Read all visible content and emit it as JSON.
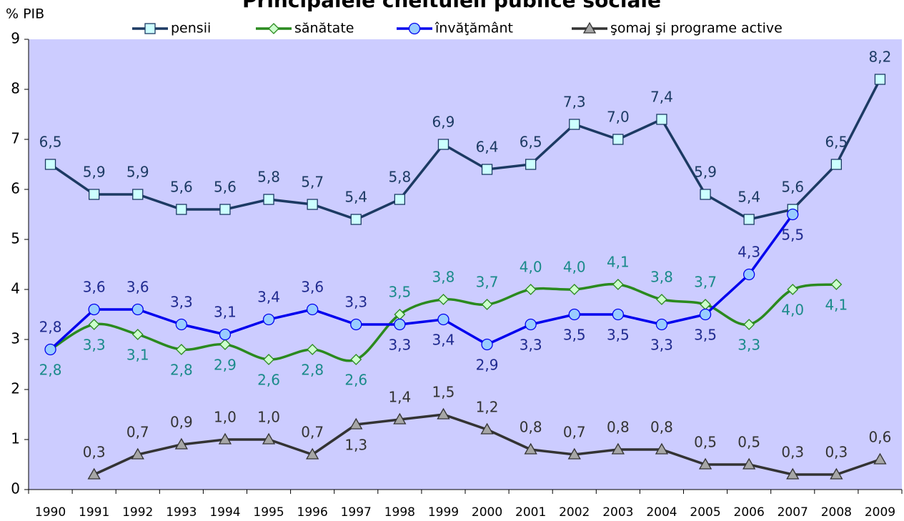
{
  "chart_data": {
    "type": "line",
    "title": "Principalele cheltuieli publice sociale",
    "y_label": "% PIB",
    "categories": [
      "1990",
      "1991",
      "1992",
      "1993",
      "1994",
      "1995",
      "1996",
      "1997",
      "1998",
      "1999",
      "2000",
      "2001",
      "2002",
      "2003",
      "2004",
      "2005",
      "2006",
      "2007",
      "2008",
      "2009"
    ],
    "ylim": [
      0,
      9
    ],
    "yticks": [
      0,
      1,
      2,
      3,
      4,
      5,
      6,
      7,
      8,
      9
    ],
    "grid": false,
    "legend": "top",
    "series": [
      {
        "name": "pensii",
        "color": "#1c3a63",
        "marker": "square",
        "marker_color": "#ccffff",
        "label_color": "#1c3a63",
        "values": [
          6.5,
          5.9,
          5.9,
          5.6,
          5.6,
          5.8,
          5.7,
          5.4,
          5.8,
          6.9,
          6.4,
          6.5,
          7.3,
          7.0,
          7.4,
          5.9,
          5.4,
          5.6,
          6.5,
          8.2
        ],
        "value_labels": [
          "6,5",
          "5,9",
          "5,9",
          "5,6",
          "5,6",
          "5,8",
          "5,7",
          "5,4",
          "5,8",
          "6,9",
          "6,4",
          "6,5",
          "7,3",
          "7,0",
          "7,4",
          "5,9",
          "5,4",
          "5,6",
          "6,5",
          "8,2"
        ]
      },
      {
        "name": "sănătate",
        "color": "#2a8a1e",
        "marker": "diamond",
        "marker_color": "#ccffcc",
        "label_color": "#1a8a8a",
        "smooth": true,
        "values": [
          2.8,
          3.3,
          3.1,
          2.8,
          2.9,
          2.6,
          2.8,
          2.6,
          3.5,
          3.8,
          3.7,
          4.0,
          4.0,
          4.1,
          3.8,
          3.7,
          3.3,
          4.0,
          4.1,
          null
        ],
        "value_labels": [
          "2,8",
          "3,3",
          "3,1",
          "2,8",
          "2,9",
          "2,6",
          "2,8",
          "2,6",
          "3,5",
          "3,8",
          "3,7",
          "4,0",
          "4,0",
          "4,1",
          "3,8",
          "3,7",
          "3,3",
          "4,0",
          "4,1",
          null
        ]
      },
      {
        "name": "învăţământ",
        "color": "#0000ee",
        "marker": "circle",
        "marker_color": "#99ccff",
        "label_color": "#1f2a8f",
        "values": [
          2.8,
          3.6,
          3.6,
          3.3,
          3.1,
          3.4,
          3.6,
          3.3,
          3.3,
          3.4,
          2.9,
          3.3,
          3.5,
          3.5,
          3.3,
          3.5,
          4.3,
          5.5,
          null,
          null
        ],
        "value_labels": [
          "2,8",
          "3,6",
          "3,6",
          "3,3",
          "3,1",
          "3,4",
          "3,6",
          "3,3",
          "3,3",
          "3,4",
          "2,9",
          "3,3",
          "3,5",
          "3,5",
          "3,3",
          "3,5",
          "4,3",
          "5,5",
          null,
          null
        ]
      },
      {
        "name": "şomaj şi programe active",
        "color": "#333333",
        "marker": "triangle",
        "marker_color": "#a6a6a6",
        "label_color": "#333333",
        "values": [
          null,
          0.3,
          0.7,
          0.9,
          1.0,
          1.0,
          0.7,
          1.3,
          1.4,
          1.5,
          1.2,
          0.8,
          0.7,
          0.8,
          0.8,
          0.5,
          0.5,
          0.3,
          0.3,
          0.6
        ],
        "value_labels": [
          null,
          "0,3",
          "0,7",
          "0,9",
          "1,0",
          "1,0",
          "0,7",
          "1,3",
          "1,4",
          "1,5",
          "1,2",
          "0,8",
          "0,7",
          "0,8",
          "0,8",
          "0,5",
          "0,5",
          "0,3",
          "0,3",
          "0,6"
        ]
      }
    ]
  }
}
